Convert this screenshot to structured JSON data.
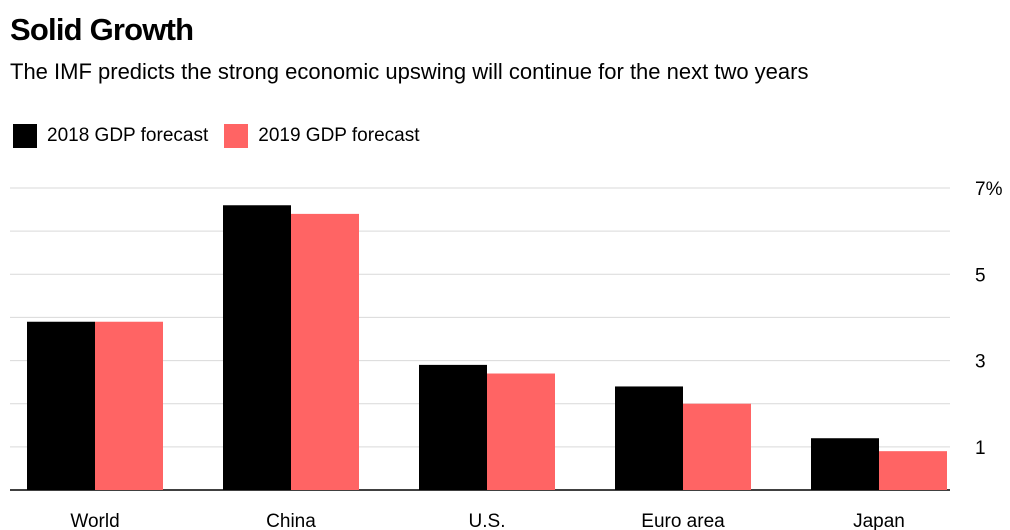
{
  "header": {
    "title": "Solid Growth",
    "subtitle": "The IMF predicts the strong economic upswing will continue for the next two years"
  },
  "chart_data": {
    "type": "bar",
    "categories": [
      "World",
      "China",
      "U.S.",
      "Euro area",
      "Japan"
    ],
    "series": [
      {
        "name": "2018 GDP forecast",
        "values": [
          3.9,
          6.6,
          2.9,
          2.4,
          1.2
        ],
        "color": "#000000"
      },
      {
        "name": "2019 GDP forecast",
        "values": [
          3.9,
          6.4,
          2.7,
          2.0,
          0.9
        ],
        "color": "#ff6464"
      }
    ],
    "y_ticks": [
      {
        "value": 7,
        "label": "7%"
      },
      {
        "value": 5,
        "label": "5"
      },
      {
        "value": 3,
        "label": "3"
      },
      {
        "value": 1,
        "label": "1"
      }
    ],
    "ylim": [
      0,
      7
    ],
    "grid": true,
    "legend_position": "top-left",
    "y_axis_side": "right"
  }
}
